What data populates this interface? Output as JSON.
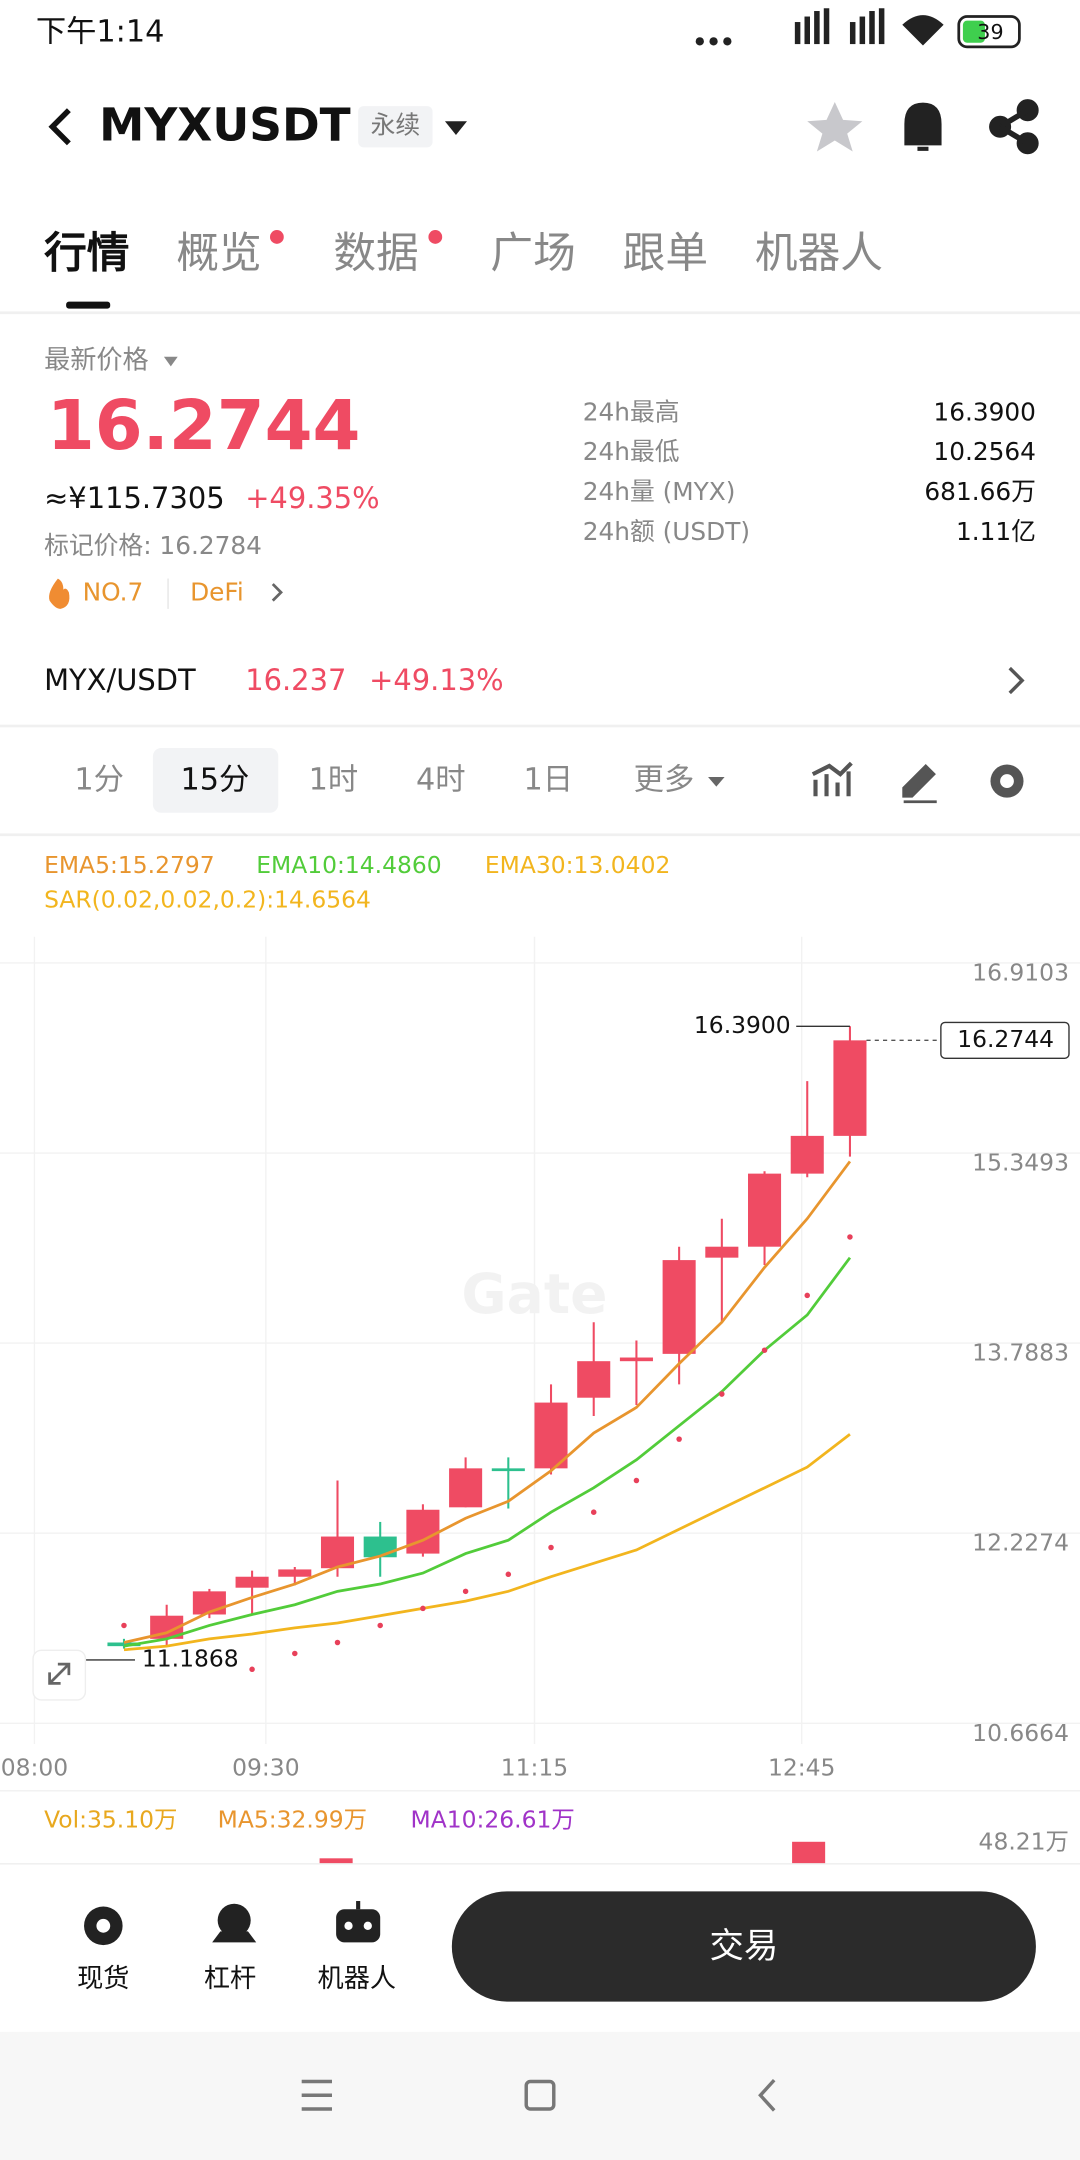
{
  "status": {
    "time": "下午1:14",
    "battery": "39"
  },
  "header": {
    "title": "MYXUSDT",
    "tag": "永续"
  },
  "tabs": [
    "行情",
    "概览",
    "数据",
    "广场",
    "跟单",
    "机器人"
  ],
  "price": {
    "label": "最新价格",
    "last": "16.2744",
    "cny": "≈¥115.7305",
    "change": "+49.35%",
    "mark": "标记价格: 16.2784",
    "rank": "NO.7",
    "sector": "DeFi"
  },
  "stats": [
    [
      "24h最高",
      "16.3900"
    ],
    [
      "24h最低",
      "10.2564"
    ],
    [
      "24h量 (MYX)",
      "681.66万"
    ],
    [
      "24h额 (USDT)",
      "1.11亿"
    ]
  ],
  "pair": {
    "name": "MYX/USDT",
    "price": "16.237",
    "change": "+49.13%"
  },
  "intervals": [
    "1分",
    "15分",
    "1时",
    "4时",
    "1日",
    "更多"
  ],
  "chart": {
    "type": "candlestick",
    "watermark": "Gate",
    "ylim": [
      10.6664,
      16.9103
    ],
    "yticks": [
      16.9103,
      15.3493,
      13.7883,
      12.2274,
      10.6664
    ],
    "x_labels": [
      "08:00",
      "09:30",
      "11:15",
      "12:45"
    ],
    "up_color": "#ef4b63",
    "down_color": "#2dc08e",
    "candles": [
      {
        "o": 11.33,
        "h": 11.36,
        "l": 11.28,
        "c": 11.3
      },
      {
        "o": 11.36,
        "h": 11.64,
        "l": 11.3,
        "c": 11.55
      },
      {
        "o": 11.56,
        "h": 11.77,
        "l": 11.53,
        "c": 11.75
      },
      {
        "o": 11.78,
        "h": 11.92,
        "l": 11.56,
        "c": 11.87
      },
      {
        "o": 11.87,
        "h": 11.95,
        "l": 11.8,
        "c": 11.93
      },
      {
        "o": 11.94,
        "h": 12.66,
        "l": 11.87,
        "c": 12.2
      },
      {
        "o": 12.2,
        "h": 12.32,
        "l": 11.87,
        "c": 12.03
      },
      {
        "o": 12.06,
        "h": 12.465,
        "l": 12.035,
        "c": 12.42
      },
      {
        "o": 12.44,
        "h": 12.85,
        "l": 12.44,
        "c": 12.76
      },
      {
        "o": 12.76,
        "h": 12.85,
        "l": 12.43,
        "c": 12.74
      },
      {
        "o": 12.76,
        "h": 13.45,
        "l": 12.71,
        "c": 13.3
      },
      {
        "o": 13.34,
        "h": 13.96,
        "l": 13.19,
        "c": 13.64
      },
      {
        "o": 13.64,
        "h": 13.81,
        "l": 13.28,
        "c": 13.67
      },
      {
        "o": 13.7,
        "h": 14.58,
        "l": 13.45,
        "c": 14.47
      },
      {
        "o": 14.49,
        "h": 14.81,
        "l": 13.96,
        "c": 14.58
      },
      {
        "o": 14.58,
        "h": 15.2,
        "l": 14.43,
        "c": 15.18
      },
      {
        "o": 15.18,
        "h": 15.94,
        "l": 15.15,
        "c": 15.49
      },
      {
        "o": 15.49,
        "h": 16.39,
        "l": 15.32,
        "c": 16.2744
      }
    ],
    "ema": [
      {
        "label": "EMA5:15.2797",
        "color": "#e8952e",
        "values": [
          11.33,
          11.41,
          11.58,
          11.7,
          11.81,
          11.95,
          12.04,
          12.17,
          12.35,
          12.49,
          12.74,
          13.05,
          13.26,
          13.62,
          13.96,
          14.41,
          14.81,
          15.28
        ]
      },
      {
        "label": "EMA10:14.4860",
        "color": "#52cc3a",
        "values": [
          11.3,
          11.36,
          11.47,
          11.56,
          11.64,
          11.75,
          11.81,
          11.9,
          12.06,
          12.17,
          12.4,
          12.6,
          12.83,
          13.11,
          13.39,
          13.73,
          14.02,
          14.49
        ]
      },
      {
        "label": "EMA30:13.0402",
        "color": "#f2b51e",
        "values": [
          11.27,
          11.3,
          11.36,
          11.4,
          11.45,
          11.49,
          11.55,
          11.61,
          11.67,
          11.75,
          11.87,
          11.98,
          12.09,
          12.26,
          12.43,
          12.6,
          12.77,
          13.04
        ]
      }
    ],
    "sar": {
      "label": "SAR(0.02,0.02,0.2):14.6564",
      "color": "#f2b51e",
      "dot_color": "#e8405a",
      "values": [
        11.47,
        null,
        null,
        11.11,
        11.24,
        11.33,
        11.47,
        11.61,
        11.75,
        11.89,
        12.11,
        12.4,
        12.66,
        13.0,
        13.37,
        13.73,
        14.18,
        14.66
      ]
    },
    "high": {
      "value": 16.39,
      "label": "16.3900"
    },
    "low": {
      "value": 11.1868,
      "label": "11.1868"
    },
    "last": {
      "value": 16.2744,
      "label": "16.2744"
    }
  },
  "volume": {
    "vol": "Vol:35.10万",
    "ma5": "MA5:32.99万",
    "ma10": "MA10:26.61万",
    "axis_max": "48.21万"
  },
  "bottom": {
    "items": [
      "现货",
      "杠杆",
      "机器人"
    ],
    "button": "交易"
  }
}
